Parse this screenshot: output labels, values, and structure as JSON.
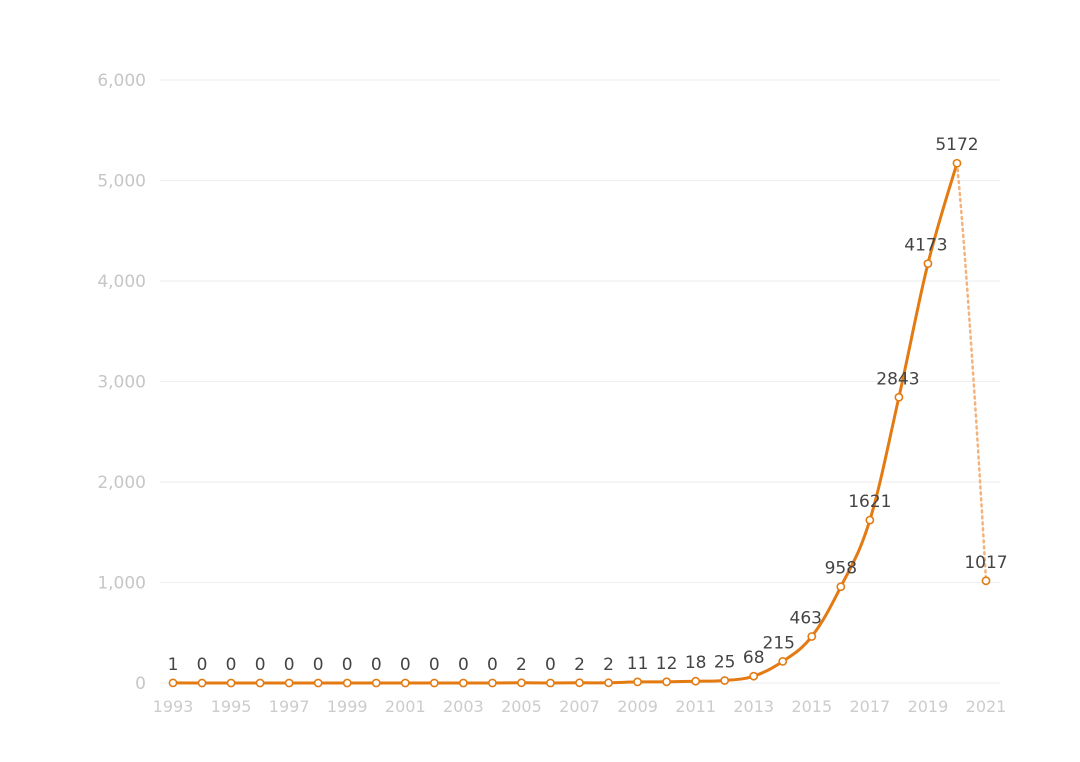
{
  "colors": {
    "line": "#E47A12",
    "marker_fill": "#ffffff",
    "grid": "#eeeeee",
    "axis_text": "#c6c6c6",
    "label_text": "#444444"
  },
  "chart_data": {
    "type": "line",
    "title": "",
    "xlabel": "",
    "ylabel": "",
    "grid": true,
    "legend": "none",
    "ylim": [
      0,
      6000
    ],
    "yticks": [
      0,
      1000,
      2000,
      3000,
      4000,
      5000,
      6000
    ],
    "ytick_labels": [
      "0",
      "1,000",
      "2,000",
      "3,000",
      "4,000",
      "5,000",
      "6,000"
    ],
    "xtick_labels": [
      "1993",
      "1995",
      "1997",
      "1999",
      "2001",
      "2003",
      "2005",
      "2007",
      "2009",
      "2011",
      "2013",
      "2015",
      "2017",
      "2019",
      "2021"
    ],
    "x": [
      1993,
      1994,
      1995,
      1996,
      1997,
      1998,
      1999,
      2000,
      2001,
      2002,
      2003,
      2004,
      2005,
      2006,
      2007,
      2008,
      2009,
      2010,
      2011,
      2012,
      2013,
      2014,
      2015,
      2016,
      2017,
      2018,
      2019,
      2020,
      2021
    ],
    "values": [
      1,
      0,
      0,
      0,
      0,
      0,
      0,
      0,
      0,
      0,
      0,
      0,
      2,
      0,
      2,
      2,
      11,
      12,
      18,
      25,
      68,
      215,
      463,
      958,
      1621,
      2843,
      4173,
      5172,
      1017
    ],
    "data_labels": [
      "1",
      "0",
      "0",
      "0",
      "0",
      "0",
      "0",
      "0",
      "0",
      "0",
      "0",
      "0",
      "2",
      "0",
      "2",
      "2",
      "11",
      "12",
      "18",
      "25",
      "68",
      "215",
      "463",
      "958",
      "1621",
      "2843",
      "4173",
      "5172",
      "1017"
    ],
    "dashed_last_segment": true
  }
}
